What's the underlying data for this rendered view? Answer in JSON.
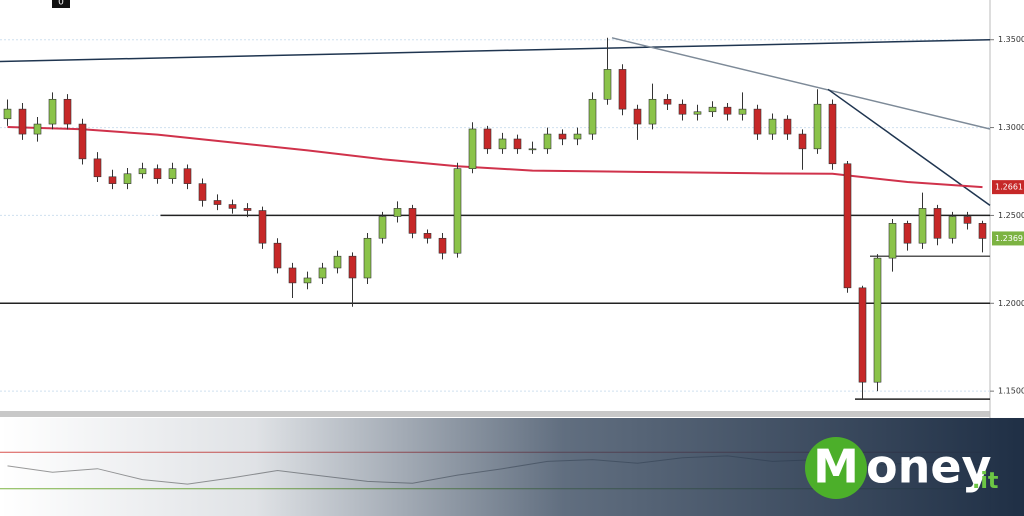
{
  "chart_data": {
    "type": "candlestick",
    "badge": 0,
    "xlim": [
      -0.5,
      65.5
    ],
    "ylim": [
      1.1387,
      1.3726
    ],
    "yticks": [
      {
        "value": 1.35,
        "label": "1.3500"
      },
      {
        "value": 1.3,
        "label": "1.3000"
      },
      {
        "value": 1.25,
        "label": "1.2500"
      },
      {
        "value": 1.2,
        "label": "1.2000"
      },
      {
        "value": 1.15,
        "label": "1.1500"
      }
    ],
    "grid": true,
    "up_color": "#8bc34a",
    "down_color": "#c62828",
    "open": [
      1.305,
      1.3105,
      1.2963,
      1.302,
      1.3161,
      1.302,
      1.2822,
      1.272,
      1.2681,
      1.2737,
      1.2766,
      1.2709,
      1.2766,
      1.2681,
      1.2585,
      1.2562,
      1.254,
      1.2528,
      1.2342,
      1.2201,
      1.2116,
      1.2144,
      1.2201,
      1.2268,
      1.2144,
      1.237,
      1.2494,
      1.254,
      1.2398,
      1.237,
      1.2285,
      1.2766,
      1.2992,
      1.2879,
      1.2935,
      1.2879,
      1.2879,
      1.2963,
      1.2935,
      1.2963,
      1.3161,
      1.3331,
      1.3105,
      1.302,
      1.3161,
      1.3133,
      1.3076,
      1.309,
      1.3116,
      1.3076,
      1.3105,
      1.2963,
      1.3048,
      1.2963,
      1.2879,
      1.3133,
      1.2794,
      1.2088,
      1.1551,
      1.2257,
      1.2455,
      1.2342,
      1.254,
      1.237,
      1.2494,
      1.2455
    ],
    "high": [
      1.316,
      1.314,
      1.306,
      1.32,
      1.319,
      1.305,
      1.286,
      1.276,
      1.277,
      1.28,
      1.279,
      1.28,
      1.279,
      1.271,
      1.262,
      1.259,
      1.257,
      1.255,
      1.237,
      1.223,
      1.218,
      1.223,
      1.23,
      1.229,
      1.24,
      1.252,
      1.258,
      1.256,
      1.242,
      1.24,
      1.28,
      1.303,
      1.301,
      1.297,
      1.296,
      1.292,
      1.3,
      1.299,
      1.3,
      1.32,
      1.3511,
      1.336,
      1.313,
      1.325,
      1.319,
      1.316,
      1.313,
      1.315,
      1.314,
      1.32,
      1.313,
      1.308,
      1.307,
      1.299,
      1.3218,
      1.316,
      1.281,
      1.21,
      1.228,
      1.248,
      1.247,
      1.263,
      1.256,
      1.252,
      1.252,
      1.247
    ],
    "low": [
      1.301,
      1.293,
      1.292,
      1.299,
      1.299,
      1.279,
      1.269,
      1.265,
      1.265,
      1.271,
      1.268,
      1.268,
      1.265,
      1.255,
      1.253,
      1.251,
      1.249,
      1.231,
      1.217,
      1.203,
      1.208,
      1.211,
      1.217,
      1.198,
      1.211,
      1.234,
      1.246,
      1.237,
      1.234,
      1.225,
      1.226,
      1.274,
      1.285,
      1.285,
      1.285,
      1.285,
      1.285,
      1.29,
      1.29,
      1.293,
      1.313,
      1.307,
      1.293,
      1.299,
      1.31,
      1.304,
      1.304,
      1.306,
      1.304,
      1.304,
      1.293,
      1.293,
      1.293,
      1.276,
      1.285,
      1.276,
      1.206,
      1.145,
      1.15,
      1.218,
      1.23,
      1.231,
      1.233,
      1.234,
      1.242,
      1.229
    ],
    "close": [
      1.3105,
      1.2963,
      1.302,
      1.3161,
      1.302,
      1.2822,
      1.272,
      1.2681,
      1.2737,
      1.2766,
      1.2709,
      1.2766,
      1.2681,
      1.2585,
      1.2562,
      1.254,
      1.2528,
      1.2342,
      1.2201,
      1.2116,
      1.2144,
      1.2201,
      1.2268,
      1.2144,
      1.237,
      1.2494,
      1.254,
      1.2398,
      1.237,
      1.2285,
      1.2766,
      1.2992,
      1.2879,
      1.2935,
      1.2879,
      1.2879,
      1.2963,
      1.2935,
      1.2963,
      1.3161,
      1.3331,
      1.3105,
      1.302,
      1.3161,
      1.3133,
      1.3076,
      1.309,
      1.3116,
      1.3076,
      1.3105,
      1.2963,
      1.3048,
      1.2963,
      1.2879,
      1.3133,
      1.2794,
      1.2088,
      1.1551,
      1.2257,
      1.2455,
      1.2342,
      1.254,
      1.237,
      1.2494,
      1.2455,
      1.2369
    ],
    "ma": {
      "color": "#d0324b",
      "x": [
        0,
        5,
        10,
        15,
        20,
        25,
        30,
        35,
        40,
        45,
        50,
        55,
        60,
        65
      ],
      "values": [
        1.3003,
        1.299,
        1.296,
        1.2915,
        1.287,
        1.282,
        1.278,
        1.2755,
        1.275,
        1.2745,
        1.274,
        1.2737,
        1.269,
        1.2661
      ]
    },
    "lines": [
      {
        "color": "#1f3550",
        "x": [
          -0.5,
          65.5
        ],
        "y": [
          1.3376,
          1.35
        ]
      },
      {
        "color": "#7d8a98",
        "x": [
          40.3,
          65.5
        ],
        "y": [
          1.3511,
          1.2992
        ]
      },
      {
        "color": "#1f3550",
        "x": [
          54.7,
          65.5
        ],
        "y": [
          1.3218,
          1.2557
        ]
      },
      {
        "color": "#222222",
        "x": [
          10.2,
          65.5
        ],
        "y": [
          1.25,
          1.25
        ]
      },
      {
        "color": "#222222",
        "x": [
          -0.5,
          65.5
        ],
        "y": [
          1.2,
          1.2
        ]
      },
      {
        "color": "#555555",
        "x": [
          57.5,
          65.5
        ],
        "y": [
          1.2268,
          1.2268
        ]
      },
      {
        "color": "#222222",
        "x": [
          56.5,
          65.5
        ],
        "y": [
          1.1455,
          1.1455
        ]
      }
    ],
    "price_labels": [
      {
        "value": 1.2661,
        "color": "#c62828"
      },
      {
        "value": 1.2369,
        "color": "#7cb342"
      }
    ],
    "oscillator": {
      "ylim": [
        0,
        100
      ],
      "levels": [
        {
          "value": 70,
          "color": "#d9534f"
        },
        {
          "value": 30,
          "color": "#7cb342"
        }
      ],
      "color": "#9a9a9a",
      "x": [
        0,
        3,
        6,
        9,
        12,
        15,
        18,
        21,
        24,
        27,
        30,
        33,
        36,
        39,
        42,
        45,
        48,
        51,
        54,
        57,
        60,
        63,
        65
      ],
      "values": [
        55,
        48,
        52,
        40,
        35,
        42,
        50,
        44,
        38,
        36,
        45,
        52,
        60,
        62,
        58,
        64,
        66,
        60,
        62,
        55,
        58,
        60,
        56
      ]
    }
  },
  "brand": {
    "initial": "M",
    "rest": "oney",
    "suffix": ".it"
  }
}
